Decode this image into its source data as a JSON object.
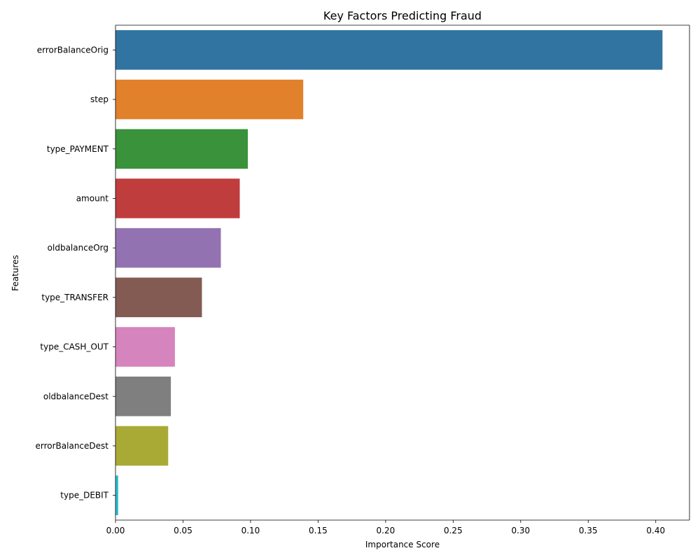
{
  "chart_data": {
    "type": "bar",
    "orientation": "horizontal",
    "title": "Key Factors Predicting Fraud",
    "xlabel": "Importance Score",
    "ylabel": "Features",
    "xlim": [
      0,
      0.425
    ],
    "xticks": [
      "0.00",
      "0.05",
      "0.10",
      "0.15",
      "0.20",
      "0.25",
      "0.30",
      "0.35",
      "0.40"
    ],
    "categories": [
      "errorBalanceOrig",
      "step",
      "type_PAYMENT",
      "amount",
      "oldbalanceOrg",
      "type_TRANSFER",
      "type_CASH_OUT",
      "oldbalanceDest",
      "errorBalanceDest",
      "type_DEBIT"
    ],
    "values": [
      0.405,
      0.139,
      0.098,
      0.092,
      0.078,
      0.064,
      0.044,
      0.041,
      0.039,
      0.002
    ],
    "colors": [
      "#3274a1",
      "#e1812c",
      "#3a923a",
      "#c03d3e",
      "#9372b2",
      "#845b53",
      "#d684bd",
      "#7f7f7f",
      "#a9aa35",
      "#2ebece"
    ],
    "grid": false,
    "legend": "none"
  }
}
